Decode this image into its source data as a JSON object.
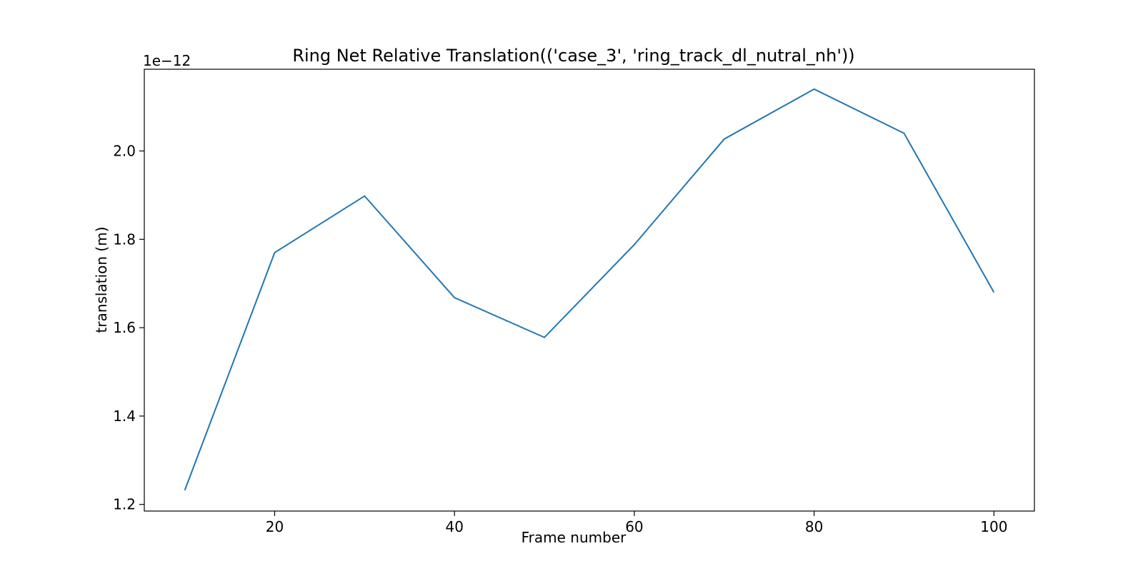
{
  "chart_data": {
    "type": "line",
    "title": "Ring Net Relative Translation(('case_3', 'ring_track_dl_nutral_nh'))",
    "xlabel": "Frame number",
    "ylabel": "translation (m)",
    "y_offset_label": "1e−12",
    "xlim": [
      5.5,
      104.5
    ],
    "ylim": [
      1.185,
      2.185
    ],
    "x_ticks": [
      20,
      40,
      60,
      80,
      100
    ],
    "x_tick_labels": [
      "20",
      "40",
      "60",
      "80",
      "100"
    ],
    "y_ticks": [
      1.2,
      1.4,
      1.6,
      1.8,
      2.0
    ],
    "y_tick_labels": [
      "1.2",
      "1.4",
      "1.6",
      "1.8",
      "2.0"
    ],
    "grid": false,
    "series": [
      {
        "color": "#1f77b4",
        "x": [
          10,
          20,
          30,
          40,
          50,
          60,
          70,
          80,
          90,
          100
        ],
        "y": [
          1.232,
          1.77,
          1.898,
          1.668,
          1.578,
          1.788,
          2.027,
          2.14,
          2.04,
          1.68
        ]
      }
    ]
  }
}
